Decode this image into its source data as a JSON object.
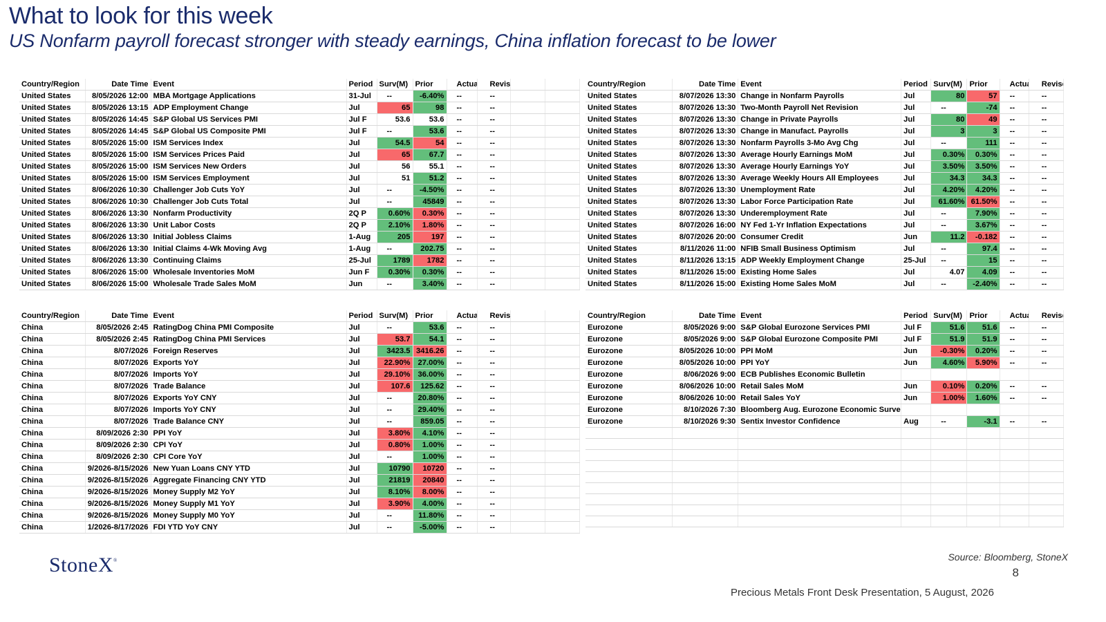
{
  "title": "What to look for this week",
  "subtitle": "US  Nonfarm payroll forecast stronger with steady earnings, China inflation forecast to be lower",
  "headers": [
    "Country/Region",
    "Date Time",
    "Event",
    "Period",
    "Surv(M)",
    "Prior",
    "Actual",
    "Revised"
  ],
  "colors": {
    "green": "#63be7b",
    "red": "#f8696b",
    "brand": "#1a2b6b"
  },
  "tables": {
    "us_left": [
      [
        "United States",
        "8/05/2026 12:00",
        "MBA Mortgage Applications",
        "31-Jul",
        "--",
        "-6.40%",
        "--",
        "--"
      ],
      [
        "United States",
        "8/05/2026 13:15",
        "ADP Employment Change",
        "Jul",
        "65",
        "98",
        "--",
        "--"
      ],
      [
        "United States",
        "8/05/2026 14:45",
        "S&P Global US Services PMI",
        "Jul F",
        "53.6",
        "53.6",
        "--",
        "--"
      ],
      [
        "United States",
        "8/05/2026 14:45",
        "S&P Global US Composite PMI",
        "Jul F",
        "--",
        "53.6",
        "--",
        "--"
      ],
      [
        "United States",
        "8/05/2026 15:00",
        "ISM Services Index",
        "Jul",
        "54.5",
        "54",
        "--",
        "--"
      ],
      [
        "United States",
        "8/05/2026 15:00",
        "ISM Services Prices Paid",
        "Jul",
        "65",
        "67.7",
        "--",
        "--"
      ],
      [
        "United States",
        "8/05/2026 15:00",
        "ISM Services New Orders",
        "Jul",
        "56",
        "55.1",
        "--",
        "--"
      ],
      [
        "United States",
        "8/05/2026 15:00",
        "ISM Services Employment",
        "Jul",
        "51",
        "51.2",
        "--",
        "--"
      ],
      [
        "United States",
        "8/06/2026 10:30",
        "Challenger Job Cuts YoY",
        "Jul",
        "--",
        "-4.50%",
        "--",
        "--"
      ],
      [
        "United States",
        "8/06/2026 10:30",
        "Challenger Job Cuts Total",
        "Jul",
        "--",
        "45849",
        "--",
        "--"
      ],
      [
        "United States",
        "8/06/2026 13:30",
        "Nonfarm Productivity",
        "2Q P",
        "0.60%",
        "0.30%",
        "--",
        "--"
      ],
      [
        "United States",
        "8/06/2026 13:30",
        "Unit Labor Costs",
        "2Q P",
        "2.10%",
        "1.80%",
        "--",
        "--"
      ],
      [
        "United States",
        "8/06/2026 13:30",
        "Initial Jobless Claims",
        "1-Aug",
        "205",
        "197",
        "--",
        "--"
      ],
      [
        "United States",
        "8/06/2026 13:30",
        "Initial Claims 4-Wk Moving Avg",
        "1-Aug",
        "--",
        "202.75",
        "--",
        "--"
      ],
      [
        "United States",
        "8/06/2026 13:30",
        "Continuing Claims",
        "25-Jul",
        "1789",
        "1782",
        "--",
        "--"
      ],
      [
        "United States",
        "8/06/2026 15:00",
        "Wholesale Inventories MoM",
        "Jun F",
        "0.30%",
        "0.30%",
        "--",
        "--"
      ],
      [
        "United States",
        "8/06/2026 15:00",
        "Wholesale Trade Sales MoM",
        "Jun",
        "--",
        "3.40%",
        "--",
        "--"
      ]
    ],
    "us_left_colors": [
      [
        "",
        "g"
      ],
      [
        "r",
        "g"
      ],
      [
        "",
        ""
      ],
      [
        "",
        "g"
      ],
      [
        "g",
        "r"
      ],
      [
        "r",
        "g"
      ],
      [
        "",
        ""
      ],
      [
        "",
        "g"
      ],
      [
        "",
        "g"
      ],
      [
        "",
        "g"
      ],
      [
        "g",
        "r"
      ],
      [
        "g",
        "r"
      ],
      [
        "g",
        "r"
      ],
      [
        "",
        "g"
      ],
      [
        "g",
        "r"
      ],
      [
        "g",
        "g"
      ],
      [
        "",
        "g"
      ]
    ],
    "us_right": [
      [
        "United States",
        "8/07/2026 13:30",
        "Change in Nonfarm Payrolls",
        "Jul",
        "80",
        "57",
        "--",
        "--"
      ],
      [
        "United States",
        "8/07/2026 13:30",
        "Two-Month Payroll Net Revision",
        "Jul",
        "--",
        "-74",
        "--",
        "--"
      ],
      [
        "United States",
        "8/07/2026 13:30",
        "Change in Private Payrolls",
        "Jul",
        "80",
        "49",
        "--",
        "--"
      ],
      [
        "United States",
        "8/07/2026 13:30",
        "Change in Manufact. Payrolls",
        "Jul",
        "3",
        "3",
        "--",
        "--"
      ],
      [
        "United States",
        "8/07/2026 13:30",
        "Nonfarm Payrolls 3-Mo Avg Chg",
        "Jul",
        "--",
        "111",
        "--",
        "--"
      ],
      [
        "United States",
        "8/07/2026 13:30",
        "Average Hourly Earnings MoM",
        "Jul",
        "0.30%",
        "0.30%",
        "--",
        "--"
      ],
      [
        "United States",
        "8/07/2026 13:30",
        "Average Hourly Earnings YoY",
        "Jul",
        "3.50%",
        "3.50%",
        "--",
        "--"
      ],
      [
        "United States",
        "8/07/2026 13:30",
        "Average Weekly Hours All Employees",
        "Jul",
        "34.3",
        "34.3",
        "--",
        "--"
      ],
      [
        "United States",
        "8/07/2026 13:30",
        "Unemployment Rate",
        "Jul",
        "4.20%",
        "4.20%",
        "--",
        "--"
      ],
      [
        "United States",
        "8/07/2026 13:30",
        "Labor Force Participation Rate",
        "Jul",
        "61.60%",
        "61.50%",
        "--",
        "--"
      ],
      [
        "United States",
        "8/07/2026 13:30",
        "Underemployment Rate",
        "Jul",
        "--",
        "7.90%",
        "--",
        "--"
      ],
      [
        "United States",
        "8/07/2026 16:00",
        "NY Fed 1-Yr Inflation Expectations",
        "Jul",
        "--",
        "3.67%",
        "--",
        "--"
      ],
      [
        "United States",
        "8/07/2026 20:00",
        "Consumer Credit",
        "Jun",
        "11.2",
        "-0.182",
        "--",
        "--"
      ],
      [
        "United States",
        "8/11/2026 11:00",
        "NFIB Small Business Optimism",
        "Jul",
        "--",
        "97.4",
        "--",
        "--"
      ],
      [
        "United States",
        "8/11/2026 13:15",
        "ADP Weekly Employment Change",
        "25-Jul",
        "--",
        "15",
        "--",
        "--"
      ],
      [
        "United States",
        "8/11/2026 15:00",
        "Existing Home Sales",
        "Jul",
        "4.07",
        "4.09",
        "--",
        "--"
      ],
      [
        "United States",
        "8/11/2026 15:00",
        "Existing Home Sales MoM",
        "Jul",
        "--",
        "-2.40%",
        "--",
        "--"
      ]
    ],
    "us_right_colors": [
      [
        "g",
        "r"
      ],
      [
        "",
        "g"
      ],
      [
        "g",
        "r"
      ],
      [
        "g",
        "g"
      ],
      [
        "",
        "g"
      ],
      [
        "g",
        "g"
      ],
      [
        "g",
        "g"
      ],
      [
        "g",
        "g"
      ],
      [
        "g",
        "g"
      ],
      [
        "g",
        "r"
      ],
      [
        "",
        "g"
      ],
      [
        "",
        "g"
      ],
      [
        "g",
        "r"
      ],
      [
        "",
        "g"
      ],
      [
        "",
        "g"
      ],
      [
        "",
        "g"
      ],
      [
        "",
        "g"
      ]
    ],
    "china": [
      [
        "China",
        "8/05/2026 2:45",
        "RatingDog China PMI Composite",
        "Jul",
        "--",
        "53.6",
        "--",
        "--"
      ],
      [
        "China",
        "8/05/2026 2:45",
        "RatingDog China PMI Services",
        "Jul",
        "53.7",
        "54.1",
        "--",
        "--"
      ],
      [
        "China",
        "8/07/2026",
        "Foreign Reserves",
        "Jul",
        "3423.5",
        "3416.26",
        "--",
        "--"
      ],
      [
        "China",
        "8/07/2026",
        "Exports YoY",
        "Jul",
        "22.90%",
        "27.00%",
        "--",
        "--"
      ],
      [
        "China",
        "8/07/2026",
        "Imports YoY",
        "Jul",
        "29.10%",
        "36.00%",
        "--",
        "--"
      ],
      [
        "China",
        "8/07/2026",
        "Trade Balance",
        "Jul",
        "107.6",
        "125.62",
        "--",
        "--"
      ],
      [
        "China",
        "8/07/2026",
        "Exports YoY CNY",
        "Jul",
        "--",
        "20.80%",
        "--",
        "--"
      ],
      [
        "China",
        "8/07/2026",
        "Imports YoY CNY",
        "Jul",
        "--",
        "29.40%",
        "--",
        "--"
      ],
      [
        "China",
        "8/07/2026",
        "Trade Balance CNY",
        "Jul",
        "--",
        "859.05",
        "--",
        "--"
      ],
      [
        "China",
        "8/09/2026 2:30",
        "PPI YoY",
        "Jul",
        "3.80%",
        "4.10%",
        "--",
        "--"
      ],
      [
        "China",
        "8/09/2026 2:30",
        "CPI YoY",
        "Jul",
        "0.80%",
        "1.00%",
        "--",
        "--"
      ],
      [
        "China",
        "8/09/2026 2:30",
        "CPI Core YoY",
        "Jul",
        "--",
        "1.00%",
        "--",
        "--"
      ],
      [
        "China",
        "9/2026-8/15/2026",
        "New Yuan Loans CNY YTD",
        "Jul",
        "10790",
        "10720",
        "--",
        "--"
      ],
      [
        "China",
        "9/2026-8/15/2026",
        "Aggregate Financing CNY YTD",
        "Jul",
        "21819",
        "20840",
        "--",
        "--"
      ],
      [
        "China",
        "9/2026-8/15/2026",
        "Money Supply M2 YoY",
        "Jul",
        "8.10%",
        "8.00%",
        "--",
        "--"
      ],
      [
        "China",
        "9/2026-8/15/2026",
        "Money Supply M1 YoY",
        "Jul",
        "3.90%",
        "4.00%",
        "--",
        "--"
      ],
      [
        "China",
        "9/2026-8/15/2026",
        "Money Supply M0 YoY",
        "Jul",
        "--",
        "11.80%",
        "--",
        "--"
      ],
      [
        "China",
        "1/2026-8/17/2026",
        "FDI YTD YoY CNY",
        "Jul",
        "--",
        "-5.00%",
        "--",
        "--"
      ]
    ],
    "china_colors": [
      [
        "",
        "g"
      ],
      [
        "r",
        "g"
      ],
      [
        "g",
        "r"
      ],
      [
        "r",
        "g"
      ],
      [
        "r",
        "g"
      ],
      [
        "r",
        "g"
      ],
      [
        "",
        "g"
      ],
      [
        "",
        "g"
      ],
      [
        "",
        "g"
      ],
      [
        "r",
        "g"
      ],
      [
        "r",
        "g"
      ],
      [
        "",
        "g"
      ],
      [
        "g",
        "r"
      ],
      [
        "g",
        "r"
      ],
      [
        "g",
        "r"
      ],
      [
        "r",
        "g"
      ],
      [
        "",
        "g"
      ],
      [
        "",
        "g"
      ]
    ],
    "eurozone": [
      [
        "Eurozone",
        "8/05/2026 9:00",
        "S&P Global Eurozone Services PMI",
        "Jul F",
        "51.6",
        "51.6",
        "--",
        "--"
      ],
      [
        "Eurozone",
        "8/05/2026 9:00",
        "S&P Global Eurozone Composite PMI",
        "Jul F",
        "51.9",
        "51.9",
        "--",
        "--"
      ],
      [
        "Eurozone",
        "8/05/2026 10:00",
        "PPI MoM",
        "Jun",
        "-0.30%",
        "0.20%",
        "--",
        "--"
      ],
      [
        "Eurozone",
        "8/05/2026 10:00",
        "PPI YoY",
        "Jun",
        "4.60%",
        "5.90%",
        "--",
        "--"
      ],
      [
        "Eurozone",
        "8/06/2026 9:00",
        "ECB Publishes Economic Bulletin",
        "",
        "",
        "",
        "",
        ""
      ],
      [
        "Eurozone",
        "8/06/2026 10:00",
        "Retail Sales MoM",
        "Jun",
        "0.10%",
        "0.20%",
        "--",
        "--"
      ],
      [
        "Eurozone",
        "8/06/2026 10:00",
        "Retail Sales YoY",
        "Jun",
        "1.00%",
        "1.60%",
        "--",
        "--"
      ],
      [
        "Eurozone",
        "8/10/2026 7:30",
        "Bloomberg Aug. Eurozone Economic Survey",
        "",
        "",
        "",
        "",
        ""
      ],
      [
        "Eurozone",
        "8/10/2026 9:30",
        "Sentix Investor Confidence",
        "Aug",
        "--",
        "-3.1",
        "--",
        "--"
      ]
    ],
    "eurozone_colors": [
      [
        "g",
        "g"
      ],
      [
        "g",
        "g"
      ],
      [
        "r",
        "g"
      ],
      [
        "g",
        "r"
      ],
      [
        "",
        ""
      ],
      [
        "r",
        "g"
      ],
      [
        "r",
        "g"
      ],
      [
        "",
        ""
      ],
      [
        "",
        "g"
      ]
    ]
  },
  "branding": {
    "logo": "StoneX",
    "logo_mark": "®"
  },
  "source": "Source: Bloomberg, StoneX",
  "page_number": "8",
  "footer": "Precious Metals Front Desk Presentation, 5 August, 2026"
}
